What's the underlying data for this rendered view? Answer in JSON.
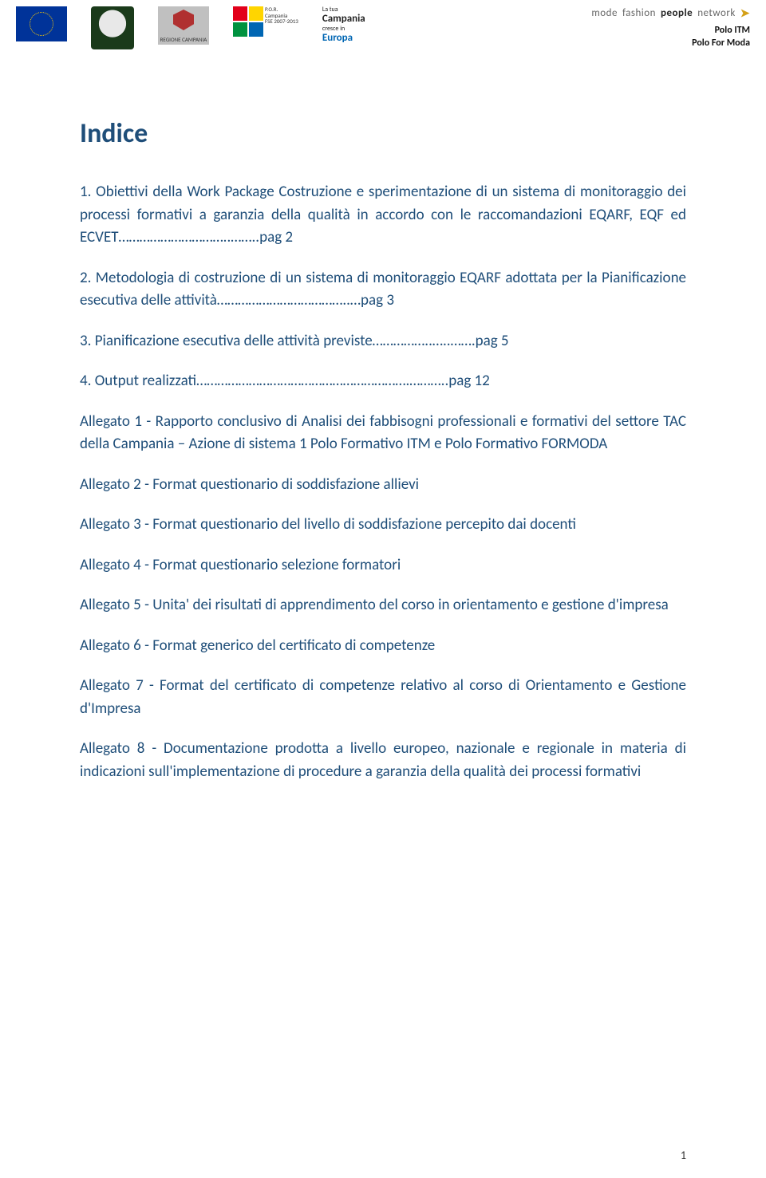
{
  "header": {
    "regione_label": "REGIONE CAMPANIA",
    "por_lines": [
      "P.O.R.",
      "Campania",
      "FSE 2007-2013"
    ],
    "campania_block": {
      "l1": "La tua",
      "l2": "Campania",
      "l3": "cresce in",
      "l4": "Europa"
    },
    "brand_text_left": "mode",
    "brand_text_mid": "fashion",
    "brand_text_bold": "people",
    "brand_text_right": "network",
    "polo1": "Polo ITM",
    "polo2": "Polo For Moda"
  },
  "content": {
    "title": "Indice",
    "p1": "1. Obiettivi della Work Package Costruzione e sperimentazione di un sistema di monitoraggio dei processi formativi a garanzia della qualità in accordo con le raccomandazioni EQARF, EQF ed ECVET…………………………..……..pag 2",
    "p2": "2. Metodologia di costruzione di un sistema di monitoraggio EQARF adottata per la Pianificazione esecutiva delle attività………………………………..…pag 3",
    "p3": "3. Pianificazione esecutiva delle attività previste……………..…..…….pag 5",
    "p4": "4. Output realizzati…………………………………………………….………..pag 12",
    "p5": "Allegato 1 - Rapporto conclusivo di Analisi dei fabbisogni professionali e formativi del settore TAC della Campania – Azione di sistema 1 Polo Formativo ITM e Polo Formativo FORMODA",
    "p6": "Allegato 2 - Format questionario di soddisfazione allievi",
    "p7": "Allegato 3 - Format questionario del livello di soddisfazione percepito dai docenti",
    "p8": "Allegato 4 - Format questionario selezione formatori",
    "p9": "Allegato 5 - Unita' dei risultati di apprendimento del corso in orientamento e gestione d'impresa",
    "p10": "Allegato 6 - Format generico del certificato di competenze",
    "p11": "Allegato 7 - Format del certificato di competenze relativo al corso di Orientamento e Gestione d'Impresa",
    "p12": "Allegato 8 - Documentazione prodotta a livello europeo, nazionale e regionale in materia di indicazioni sull'implementazione di procedure a garanzia della qualità dei processi formativi"
  },
  "page_number": "1",
  "colors": {
    "text": "#1f4e79",
    "page_bg": "#ffffff"
  },
  "typography": {
    "title_fontsize": 34,
    "body_fontsize": 19,
    "font_family": "Calibri"
  }
}
